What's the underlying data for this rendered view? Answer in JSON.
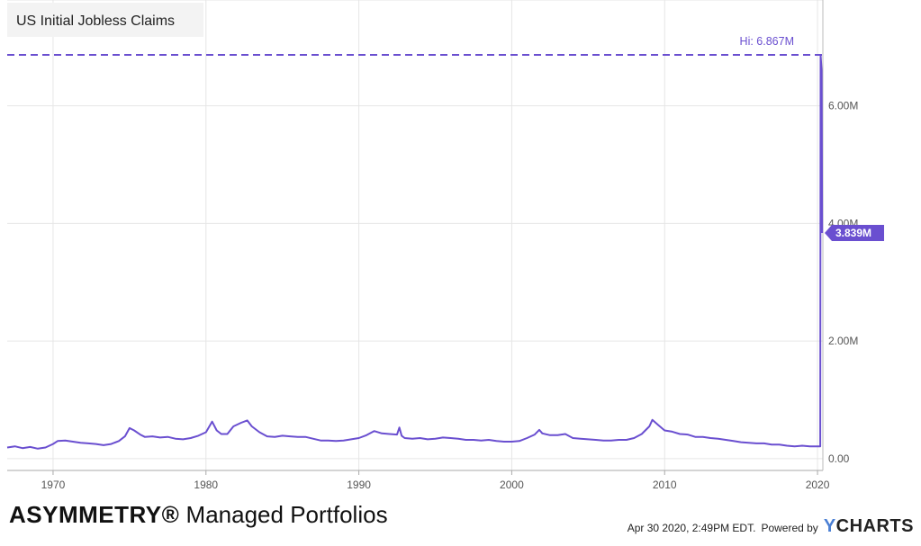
{
  "chart_data": {
    "type": "line",
    "title": "US Initial Jobless Claims",
    "x_ticks": [
      "1970",
      "1980",
      "1990",
      "2000",
      "2010",
      "2020"
    ],
    "y_ticks": [
      "0.00",
      "2.00M",
      "4.00M",
      "6.00M"
    ],
    "xlim": [
      1967.0,
      2020.35
    ],
    "ylim": [
      -0.2,
      7.8
    ],
    "y_unit": "millions",
    "hi_label": "Hi: 6.867M",
    "hi_value": 6.867,
    "last_label": "3.839M",
    "last_value": 3.839,
    "grid": true,
    "line_color": "#6a4fd0",
    "series": [
      {
        "points": [
          [
            1967.0,
            0.19
          ],
          [
            1967.5,
            0.21
          ],
          [
            1968.0,
            0.18
          ],
          [
            1968.5,
            0.2
          ],
          [
            1969.0,
            0.17
          ],
          [
            1969.5,
            0.19
          ],
          [
            1970.0,
            0.25
          ],
          [
            1970.3,
            0.3
          ],
          [
            1970.8,
            0.31
          ],
          [
            1971.3,
            0.29
          ],
          [
            1971.8,
            0.27
          ],
          [
            1972.3,
            0.26
          ],
          [
            1972.8,
            0.25
          ],
          [
            1973.3,
            0.23
          ],
          [
            1973.8,
            0.25
          ],
          [
            1974.3,
            0.3
          ],
          [
            1974.7,
            0.38
          ],
          [
            1975.0,
            0.52
          ],
          [
            1975.3,
            0.48
          ],
          [
            1975.7,
            0.41
          ],
          [
            1976.0,
            0.37
          ],
          [
            1976.5,
            0.38
          ],
          [
            1977.0,
            0.36
          ],
          [
            1977.5,
            0.37
          ],
          [
            1978.0,
            0.34
          ],
          [
            1978.5,
            0.33
          ],
          [
            1979.0,
            0.35
          ],
          [
            1979.5,
            0.39
          ],
          [
            1980.0,
            0.45
          ],
          [
            1980.4,
            0.63
          ],
          [
            1980.7,
            0.48
          ],
          [
            1981.0,
            0.42
          ],
          [
            1981.4,
            0.42
          ],
          [
            1981.8,
            0.55
          ],
          [
            1982.3,
            0.61
          ],
          [
            1982.7,
            0.65
          ],
          [
            1983.0,
            0.55
          ],
          [
            1983.5,
            0.45
          ],
          [
            1984.0,
            0.38
          ],
          [
            1984.5,
            0.37
          ],
          [
            1985.0,
            0.39
          ],
          [
            1985.5,
            0.38
          ],
          [
            1986.0,
            0.37
          ],
          [
            1986.5,
            0.37
          ],
          [
            1987.0,
            0.34
          ],
          [
            1987.5,
            0.31
          ],
          [
            1988.0,
            0.31
          ],
          [
            1988.5,
            0.3
          ],
          [
            1989.0,
            0.31
          ],
          [
            1989.5,
            0.33
          ],
          [
            1990.0,
            0.35
          ],
          [
            1990.5,
            0.4
          ],
          [
            1991.0,
            0.47
          ],
          [
            1991.5,
            0.43
          ],
          [
            1992.0,
            0.42
          ],
          [
            1992.5,
            0.41
          ],
          [
            1992.65,
            0.53
          ],
          [
            1992.8,
            0.39
          ],
          [
            1993.0,
            0.35
          ],
          [
            1993.5,
            0.34
          ],
          [
            1994.0,
            0.35
          ],
          [
            1994.5,
            0.33
          ],
          [
            1995.0,
            0.34
          ],
          [
            1995.5,
            0.36
          ],
          [
            1996.0,
            0.35
          ],
          [
            1996.5,
            0.34
          ],
          [
            1997.0,
            0.32
          ],
          [
            1997.5,
            0.32
          ],
          [
            1998.0,
            0.31
          ],
          [
            1998.5,
            0.32
          ],
          [
            1999.0,
            0.3
          ],
          [
            1999.5,
            0.29
          ],
          [
            2000.0,
            0.29
          ],
          [
            2000.5,
            0.3
          ],
          [
            2001.0,
            0.35
          ],
          [
            2001.5,
            0.41
          ],
          [
            2001.8,
            0.49
          ],
          [
            2002.0,
            0.43
          ],
          [
            2002.5,
            0.4
          ],
          [
            2003.0,
            0.4
          ],
          [
            2003.5,
            0.42
          ],
          [
            2004.0,
            0.35
          ],
          [
            2004.5,
            0.34
          ],
          [
            2005.0,
            0.33
          ],
          [
            2005.5,
            0.32
          ],
          [
            2006.0,
            0.31
          ],
          [
            2006.5,
            0.31
          ],
          [
            2007.0,
            0.32
          ],
          [
            2007.5,
            0.32
          ],
          [
            2008.0,
            0.35
          ],
          [
            2008.5,
            0.42
          ],
          [
            2009.0,
            0.55
          ],
          [
            2009.2,
            0.66
          ],
          [
            2009.6,
            0.57
          ],
          [
            2010.0,
            0.48
          ],
          [
            2010.5,
            0.46
          ],
          [
            2011.0,
            0.42
          ],
          [
            2011.5,
            0.41
          ],
          [
            2012.0,
            0.37
          ],
          [
            2012.5,
            0.37
          ],
          [
            2013.0,
            0.35
          ],
          [
            2013.5,
            0.34
          ],
          [
            2014.0,
            0.32
          ],
          [
            2014.5,
            0.3
          ],
          [
            2015.0,
            0.28
          ],
          [
            2015.5,
            0.27
          ],
          [
            2016.0,
            0.26
          ],
          [
            2016.5,
            0.26
          ],
          [
            2017.0,
            0.24
          ],
          [
            2017.5,
            0.24
          ],
          [
            2018.0,
            0.22
          ],
          [
            2018.5,
            0.21
          ],
          [
            2019.0,
            0.22
          ],
          [
            2019.5,
            0.21
          ],
          [
            2020.0,
            0.21
          ],
          [
            2020.18,
            0.21
          ],
          [
            2020.2,
            6.867
          ],
          [
            2020.27,
            6.6
          ],
          [
            2020.3,
            3.839
          ]
        ]
      }
    ]
  },
  "footer": {
    "brand_bold": "ASYMMETRY",
    "brand_reg_mark": "®",
    "brand_rest": " Managed Portfolios",
    "timestamp": "Apr 30 2020, 2:49PM EDT.",
    "powered_by": "Powered by",
    "logo_y": "Y",
    "logo_rest": "CHARTS"
  }
}
